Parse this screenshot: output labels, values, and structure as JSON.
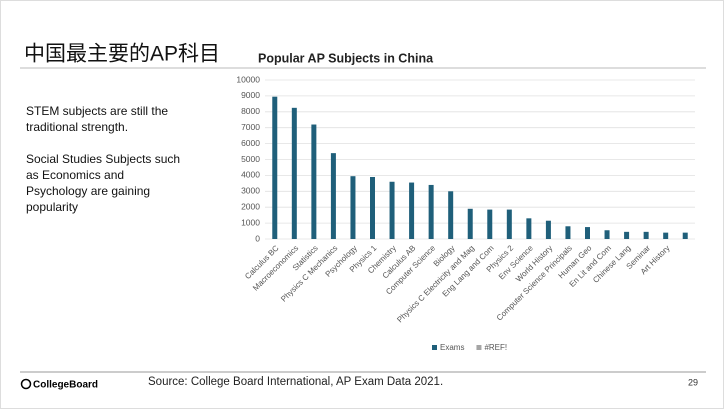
{
  "slide": {
    "title": "中国最主要的AP科目",
    "notes": [
      "STEM subjects are still the traditional strength.",
      "Social Studies Subjects such as Economics and Psychology are gaining popularity"
    ],
    "logo": "CollegeBoard",
    "source": "Source: College Board International, AP Exam Data 2021.",
    "page": "29"
  },
  "chart_data": {
    "type": "bar",
    "title": "Popular AP Subjects in China",
    "categories": [
      "Calculus BC",
      "Macroeconomics",
      "Statistics",
      "Physics C Mechanics",
      "Psychology",
      "Physics 1",
      "Chemistry",
      "Calculus AB",
      "Computer Science",
      "Biology",
      "Physics C Electricity and Mag",
      "Eng Lang and Com",
      "Physics 2",
      "Env Science",
      "World History",
      "Computer Science Principals",
      "Human Geo",
      "En Lit and Com",
      "Chinese Lang",
      "Seminar",
      "Art History",
      null
    ],
    "series": [
      {
        "name": "Exams",
        "color": "#1f5f7a",
        "values": [
          8950,
          8250,
          7200,
          5400,
          3950,
          3900,
          3600,
          3550,
          3400,
          3000,
          1900,
          1850,
          1850,
          1300,
          1150,
          800,
          750,
          550,
          450,
          450,
          400,
          400
        ]
      },
      {
        "name": "#REF!",
        "color": "#a5a5a5",
        "values": [
          null,
          null,
          null,
          null,
          null,
          null,
          null,
          null,
          null,
          null,
          null,
          null,
          null,
          null,
          null,
          null,
          null,
          null,
          null,
          null,
          null,
          null
        ]
      }
    ],
    "ylim": [
      0,
      10000
    ],
    "yticks": [
      0,
      1000,
      2000,
      3000,
      4000,
      5000,
      6000,
      7000,
      8000,
      9000,
      10000
    ],
    "grid": true,
    "legend": "bottom"
  }
}
